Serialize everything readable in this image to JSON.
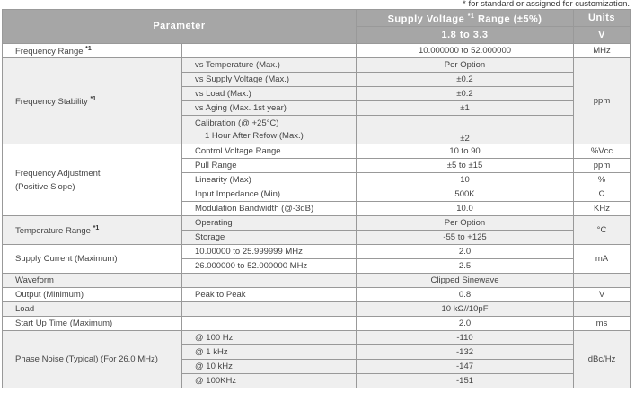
{
  "note": "* for standard or assigned for customization.",
  "header": {
    "parameter": "Parameter",
    "supply_voltage": "Supply Voltage",
    "sup": "*1",
    "range": "Range (±5%)",
    "units": "Units",
    "voltage": "1.8 to 3.3",
    "volt_unit": "V"
  },
  "rows": {
    "freq_range": {
      "label": "Frequency Range",
      "sup": "*1",
      "value": "10.000000 to 52.000000",
      "unit": "MHz"
    },
    "stability": {
      "label": "Frequency Stability",
      "sup": "*1",
      "unit": "ppm",
      "items": [
        {
          "cond": "vs Temperature (Max.)",
          "value": "Per Option"
        },
        {
          "cond": "vs Supply Voltage (Max.)",
          "value": "±0.2"
        },
        {
          "cond": "vs Load (Max.)",
          "value": "±0.2"
        },
        {
          "cond": "vs Aging (Max. 1st year)",
          "value": "±1"
        },
        {
          "cond": "Calibration (@ +25°C)",
          "cond2": "1 Hour After Refow (Max.)",
          "value": "±2"
        }
      ]
    },
    "adjustment": {
      "label": "Frequency Adjustment",
      "label2": "(Positive Slope)",
      "items": [
        {
          "cond": "Control Voltage Range",
          "value": "10 to 90",
          "unit": "%Vcc"
        },
        {
          "cond": "Pull Range",
          "value": "±5 to ±15",
          "unit": "ppm"
        },
        {
          "cond": "Linearity (Max)",
          "value": "10",
          "unit": "%"
        },
        {
          "cond": "Input Impedance (Min)",
          "value": "500K",
          "unit": "Ω"
        },
        {
          "cond": "Modulation Bandwidth (@-3dB)",
          "value": "10.0",
          "unit": "KHz"
        }
      ]
    },
    "temperature": {
      "label": "Temperature Range",
      "sup": "*1",
      "unit": "°C",
      "items": [
        {
          "cond": "Operating",
          "value": "Per Option"
        },
        {
          "cond": "Storage",
          "value": "-55 to +125"
        }
      ]
    },
    "supply_current": {
      "label": "Supply Current (Maximum)",
      "unit": "mA",
      "items": [
        {
          "cond": "10.00000 to 25.999999 MHz",
          "value": "2.0"
        },
        {
          "cond": "26.000000 to 52.000000 MHz",
          "value": "2.5"
        }
      ]
    },
    "waveform": {
      "label": "Waveform",
      "value": "Clipped Sinewave"
    },
    "output": {
      "label": "Output (Minimum)",
      "cond": "Peak to Peak",
      "value": "0.8",
      "unit": "V"
    },
    "load": {
      "label": "Load",
      "value": "10 kΩ//10pF"
    },
    "startup": {
      "label": "Start Up Time (Maximum)",
      "value": "2.0",
      "unit": "ms"
    },
    "phase_noise": {
      "label": "Phase Noise (Typical) (For 26.0 MHz)",
      "unit": "dBc/Hz",
      "items": [
        {
          "cond": "@ 100 Hz",
          "value": "-110"
        },
        {
          "cond": "@ 1 kHz",
          "value": "-132"
        },
        {
          "cond": "@ 10 kHz",
          "value": "-147"
        },
        {
          "cond": "@ 100KHz",
          "value": "-151"
        }
      ]
    }
  }
}
